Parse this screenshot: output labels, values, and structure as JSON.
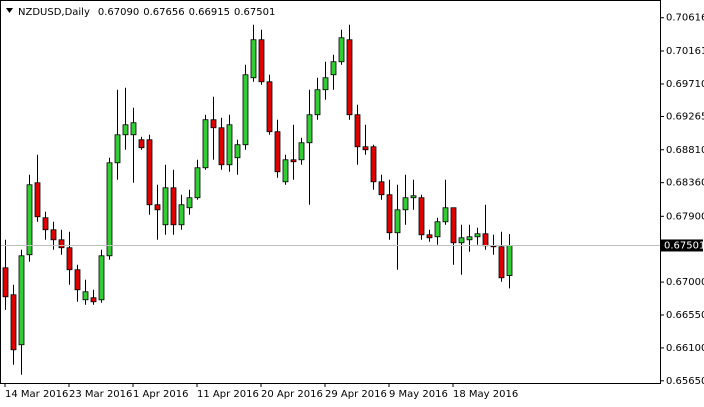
{
  "chart_data": {
    "type": "candlestick",
    "title": "NZDUSD,Daily",
    "ohlc_labels": [
      "0.67090",
      "0.67656",
      "0.66915",
      "0.67501"
    ],
    "categories": [
      "14 Mar 2016",
      null,
      null,
      null,
      null,
      null,
      null,
      null,
      "23 Mar 2016",
      null,
      null,
      null,
      null,
      null,
      null,
      null,
      "1 Apr 2016",
      null,
      null,
      null,
      null,
      null,
      null,
      null,
      "11 Apr 2016",
      null,
      null,
      null,
      null,
      null,
      null,
      null,
      "20 Apr 2016",
      null,
      null,
      null,
      null,
      null,
      null,
      null,
      "29 Apr 2016",
      null,
      null,
      null,
      null,
      null,
      null,
      null,
      "9 May 2016",
      null,
      null,
      null,
      null,
      null,
      null,
      null,
      "18 May 2016",
      null,
      null,
      null,
      null,
      null,
      null,
      null
    ],
    "open": [
      0.67196,
      0.66827,
      0.66143,
      0.67374,
      0.68359,
      0.6788,
      0.67716,
      0.67579,
      0.6747,
      0.67169,
      0.66758,
      0.66786,
      0.66758,
      0.6736,
      0.68632,
      0.69015,
      0.69015,
      0.68947,
      0.68947,
      0.68058,
      0.67784,
      0.6829,
      0.67784,
      0.68017,
      0.68154,
      0.68564,
      0.69221,
      0.69111,
      0.68605,
      0.68701,
      0.68879,
      0.69795,
      0.70315,
      0.6974,
      0.69057,
      0.68372,
      0.68673,
      0.68673,
      0.68906,
      0.69289,
      0.69631,
      0.69836,
      0.70014,
      0.70315,
      0.69289,
      0.68851,
      0.68851,
      0.68372,
      0.68195,
      0.67675,
      0.67989,
      0.68154,
      0.68154,
      0.67647,
      0.6762,
      0.67825,
      0.68017,
      0.67538,
      0.67579,
      0.6762,
      0.67661,
      0.67497,
      0.67483,
      0.6709
    ],
    "high": [
      0.67579,
      0.66963,
      0.67442,
      0.68468,
      0.68742,
      0.67962,
      0.67825,
      0.67716,
      0.67689,
      0.67237,
      0.67032,
      0.66895,
      0.67442,
      0.68701,
      0.69631,
      0.69658,
      0.69385,
      0.68988,
      0.69015,
      0.68331,
      0.68605,
      0.68537,
      0.68195,
      0.68263,
      0.68673,
      0.69289,
      0.69535,
      0.69248,
      0.69289,
      0.68947,
      0.69973,
      0.7052,
      0.70452,
      0.69836,
      0.69221,
      0.68742,
      0.69152,
      0.68974,
      0.69631,
      0.69795,
      0.70014,
      0.7011,
      0.70452,
      0.7052,
      0.69426,
      0.69152,
      0.68879,
      0.68468,
      0.684,
      0.68331,
      0.68468,
      0.684,
      0.68195,
      0.67716,
      0.6788,
      0.684,
      0.68017,
      0.67784,
      0.67784,
      0.67743,
      0.68058,
      0.67647,
      0.67689,
      0.67656
    ],
    "low": [
      0.66621,
      0.65869,
      0.65732,
      0.67278,
      0.67825,
      0.67579,
      0.67442,
      0.67374,
      0.66963,
      0.66731,
      0.6669,
      0.6669,
      0.66717,
      0.67305,
      0.684,
      0.6881,
      0.68359,
      0.6881,
      0.67921,
      0.67579,
      0.67647,
      0.67647,
      0.67716,
      0.67921,
      0.68126,
      0.68537,
      0.68673,
      0.68537,
      0.68509,
      0.68468,
      0.6881,
      0.6974,
      0.69699,
      0.69015,
      0.68427,
      0.68331,
      0.684,
      0.68605,
      0.68058,
      0.69221,
      0.69494,
      0.69631,
      0.69973,
      0.69221,
      0.68605,
      0.68742,
      0.68263,
      0.68126,
      0.67579,
      0.67169,
      0.67784,
      0.67989,
      0.67579,
      0.67552,
      0.67511,
      0.67784,
      0.67237,
      0.671,
      0.67415,
      0.67511,
      0.67442,
      0.67374,
      0.67005,
      0.66915
    ],
    "close": [
      0.66799,
      0.66074,
      0.6736,
      0.68331,
      0.67894,
      0.67716,
      0.67579,
      0.6747,
      0.67169,
      0.66895,
      0.66868,
      0.66731,
      0.6736,
      0.68632,
      0.69015,
      0.69152,
      0.6918,
      0.68838,
      0.68058,
      0.67989,
      0.6829,
      0.67784,
      0.68058,
      0.68154,
      0.68564,
      0.69221,
      0.69111,
      0.68605,
      0.69152,
      0.68879,
      0.69836,
      0.70315,
      0.6974,
      0.69057,
      0.68509,
      0.68673,
      0.68646,
      0.68906,
      0.69289,
      0.69631,
      0.69795,
      0.70014,
      0.70342,
      0.69289,
      0.68851,
      0.6881,
      0.68372,
      0.68195,
      0.67675,
      0.67989,
      0.68154,
      0.68181,
      0.67647,
      0.67606,
      0.67825,
      0.68017,
      0.67538,
      0.67606,
      0.6762,
      0.67661,
      0.67497,
      0.67483,
      0.67059,
      0.67501
    ],
    "up_color": "#32cd32",
    "down_color": "#e00000",
    "ylim": [
      0.6562,
      0.7079
    ],
    "yticks": [
      0.70616,
      0.70161,
      {
        "value": 0.6971,
        "label": "0.69710"
      },
      0.69265,
      {
        "value": 0.6881,
        "label": "0.68810"
      },
      {
        "value": 0.6836,
        "label": "0.68360"
      },
      {
        "value": 0.679,
        "label": "0.67900"
      },
      {
        "value": 0.67,
        "label": "0.67000"
      },
      {
        "value": 0.6655,
        "label": "0.66550"
      },
      {
        "value": 0.661,
        "label": "0.66100"
      },
      {
        "value": 0.6565,
        "label": "0.65650"
      }
    ],
    "grid": false
  }
}
